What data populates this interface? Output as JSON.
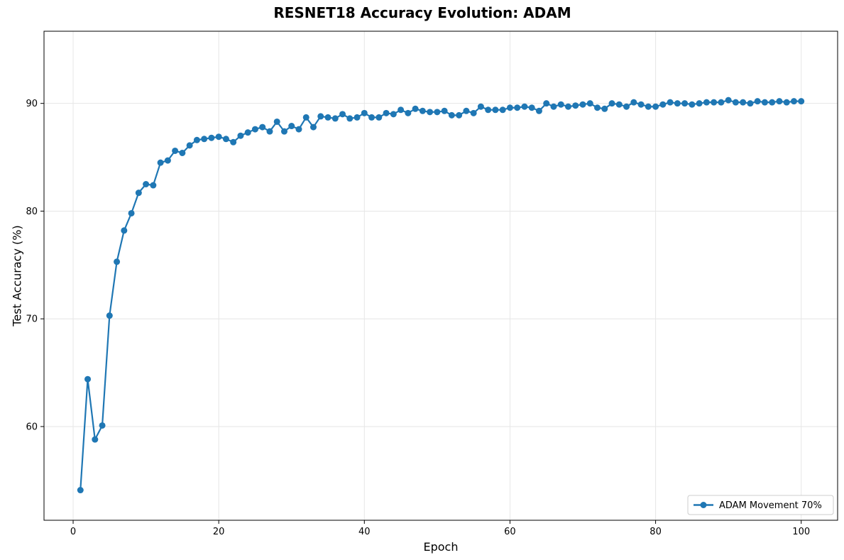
{
  "chart_data": {
    "type": "line",
    "title": "RESNET18 Accuracy Evolution: ADAM",
    "xlabel": "Epoch",
    "ylabel": "Test Accuracy (%)",
    "xlim": [
      -4,
      105
    ],
    "ylim": [
      51.3,
      96.7
    ],
    "xticks": [
      0,
      20,
      40,
      60,
      80,
      100
    ],
    "yticks": [
      60,
      70,
      80,
      90
    ],
    "grid": true,
    "legend_position": "bottom-right",
    "series": [
      {
        "name": "ADAM Movement 70%",
        "color": "#1f77b4",
        "marker": "circle",
        "x": [
          1,
          2,
          3,
          4,
          5,
          6,
          7,
          8,
          9,
          10,
          11,
          12,
          13,
          14,
          15,
          16,
          17,
          18,
          19,
          20,
          21,
          22,
          23,
          24,
          25,
          26,
          27,
          28,
          29,
          30,
          31,
          32,
          33,
          34,
          35,
          36,
          37,
          38,
          39,
          40,
          41,
          42,
          43,
          44,
          45,
          46,
          47,
          48,
          49,
          50,
          51,
          52,
          53,
          54,
          55,
          56,
          57,
          58,
          59,
          60,
          61,
          62,
          63,
          64,
          65,
          66,
          67,
          68,
          69,
          70,
          71,
          72,
          73,
          74,
          75,
          76,
          77,
          78,
          79,
          80,
          81,
          82,
          83,
          84,
          85,
          86,
          87,
          88,
          89,
          90,
          91,
          92,
          93,
          94,
          95,
          96,
          97,
          98,
          99,
          100
        ],
        "y": [
          54.1,
          64.4,
          58.8,
          60.1,
          70.3,
          75.3,
          78.2,
          79.8,
          81.7,
          82.5,
          82.4,
          84.5,
          84.7,
          85.6,
          85.4,
          86.1,
          86.6,
          86.7,
          86.8,
          86.9,
          86.7,
          86.4,
          87.0,
          87.3,
          87.6,
          87.8,
          87.4,
          88.3,
          87.4,
          87.9,
          87.6,
          88.7,
          87.8,
          88.8,
          88.7,
          88.6,
          89.0,
          88.6,
          88.7,
          89.1,
          88.7,
          88.7,
          89.1,
          89.0,
          89.4,
          89.1,
          89.5,
          89.3,
          89.2,
          89.2,
          89.3,
          88.9,
          88.9,
          89.3,
          89.1,
          89.7,
          89.4,
          89.4,
          89.4,
          89.6,
          89.6,
          89.7,
          89.6,
          89.3,
          90.0,
          89.7,
          89.9,
          89.7,
          89.8,
          89.9,
          90.0,
          89.6,
          89.5,
          90.0,
          89.9,
          89.7,
          90.1,
          89.9,
          89.7,
          89.7,
          89.9,
          90.1,
          90.0,
          90.0,
          89.9,
          90.0,
          90.1,
          90.1,
          90.1,
          90.3,
          90.1,
          90.1,
          90.0,
          90.2,
          90.1,
          90.1,
          90.2,
          90.1,
          90.2,
          90.2
        ]
      }
    ]
  }
}
